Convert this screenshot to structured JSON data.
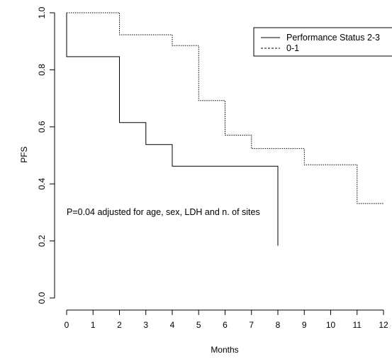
{
  "chart_data": {
    "type": "line",
    "title": "",
    "xlabel": "Months",
    "ylabel": "PFS",
    "xlim": [
      0,
      12
    ],
    "ylim": [
      0,
      1
    ],
    "x_ticks": [
      0,
      1,
      2,
      3,
      4,
      5,
      6,
      7,
      8,
      9,
      10,
      11,
      12
    ],
    "y_ticks": [
      "0.0",
      "0.2",
      "0.4",
      "0.6",
      "0.8",
      "1.0"
    ],
    "step": true,
    "grid": false,
    "legend_position": "top-right",
    "series": [
      {
        "name": "Performance Status 2-3",
        "line_style": "solid",
        "x": [
          0,
          0,
          2,
          2,
          3,
          3,
          4,
          4,
          8,
          8
        ],
        "y": [
          1.0,
          0.846,
          0.846,
          0.615,
          0.615,
          0.538,
          0.538,
          0.462,
          0.462,
          0.183
        ]
      },
      {
        "name": "0-1",
        "line_style": "dotted",
        "x": [
          0,
          2,
          2,
          4,
          4,
          5,
          5,
          6,
          6,
          7,
          7,
          9,
          9,
          11,
          11,
          12
        ],
        "y": [
          1.0,
          1.0,
          0.923,
          0.923,
          0.885,
          0.885,
          0.692,
          0.692,
          0.571,
          0.571,
          0.524,
          0.524,
          0.467,
          0.467,
          0.331,
          0.331
        ]
      }
    ],
    "annotation": "P=0.04 adjusted for age, sex, LDH and n. of sites"
  }
}
